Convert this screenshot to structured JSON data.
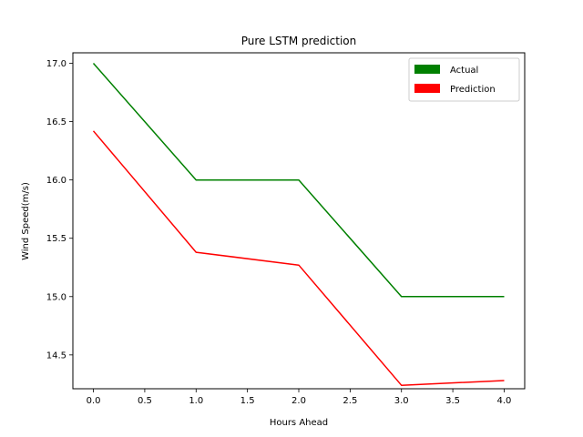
{
  "chart_data": {
    "type": "line",
    "title": "Pure LSTM prediction",
    "xlabel": "Hours Ahead",
    "ylabel": "Wind Speed(m/s)",
    "x": [
      0,
      1,
      2,
      3,
      4
    ],
    "xlim": [
      -0.2,
      4.2
    ],
    "ylim": [
      14.21,
      17.09
    ],
    "xticks": [
      "0.0",
      "0.5",
      "1.0",
      "1.5",
      "2.0",
      "2.5",
      "3.0",
      "3.5",
      "4.0"
    ],
    "yticks": [
      "14.5",
      "15.0",
      "15.5",
      "16.0",
      "16.5",
      "17.0"
    ],
    "grid": false,
    "legend_position": "top-right",
    "series": [
      {
        "name": "Actual",
        "color": "#008000",
        "values": [
          17.0,
          16.0,
          16.0,
          15.0,
          15.0
        ]
      },
      {
        "name": "Prediction",
        "color": "#ff0000",
        "values": [
          16.42,
          15.38,
          15.27,
          14.24,
          14.28
        ]
      }
    ]
  }
}
